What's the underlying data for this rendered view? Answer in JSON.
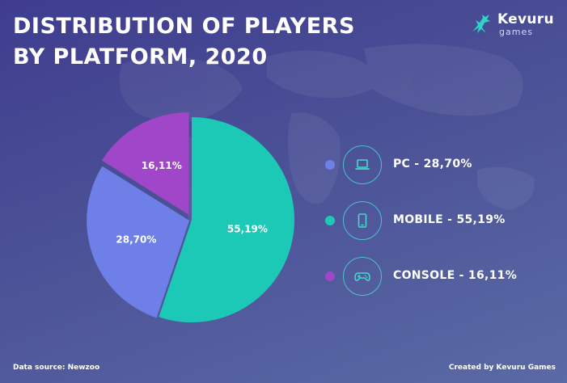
{
  "title": "DISTRIBUTION OF PLAYERS BY PLATFORM, 2020",
  "logo": {
    "name": "Kevuru",
    "sub": "games"
  },
  "footer": {
    "source": "Data source: Newzoo",
    "credit": "Created by Kevuru Games"
  },
  "legend": [
    {
      "label": "PC - 28,70%",
      "color": "#6f7fe8",
      "icon": "laptop-icon"
    },
    {
      "label": "MOBILE - 55,19%",
      "color": "#1cc8b6",
      "icon": "smartphone-icon"
    },
    {
      "label": "CONSOLE - 16,11%",
      "color": "#a046c8",
      "icon": "gamepad-icon"
    }
  ],
  "chart_data": {
    "type": "pie",
    "categories": [
      "MOBILE",
      "PC",
      "CONSOLE"
    ],
    "values": [
      55.19,
      28.7,
      16.11
    ],
    "labels": [
      "55,19%",
      "28,70%",
      "16,11%"
    ],
    "colors": [
      "#1cc8b6",
      "#6f7fe8",
      "#a046c8"
    ],
    "title": "DISTRIBUTION OF PLAYERS BY PLATFORM, 2020",
    "legend_position": "right"
  }
}
